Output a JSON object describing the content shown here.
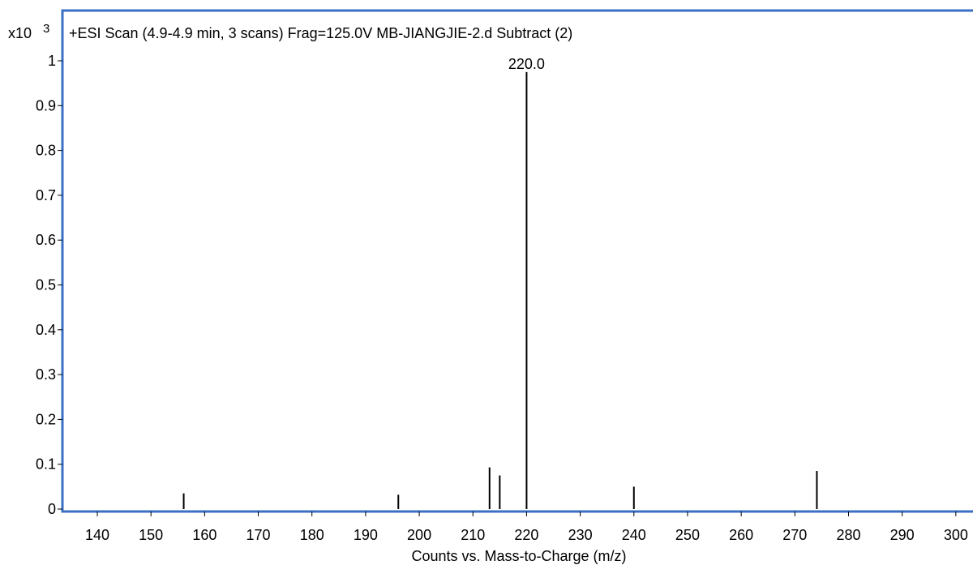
{
  "chart_data": {
    "type": "bar",
    "title": "+ESI Scan (4.9-4.9 min, 3 scans) Frag=125.0V MB-JIANGJIE-2.d  Subtract (2)",
    "xlabel": "Counts vs. Mass-to-Charge (m/z)",
    "y_scale_base": "x10",
    "y_scale_exponent": "3",
    "xlim": [
      133.5,
      303.5
    ],
    "ylim": [
      0,
      1.03
    ],
    "x_ticks": [
      "140",
      "150",
      "160",
      "170",
      "180",
      "190",
      "200",
      "210",
      "220",
      "230",
      "240",
      "250",
      "260",
      "270",
      "280",
      "290",
      "300"
    ],
    "y_ticks": [
      "0",
      "0.1",
      "0.2",
      "0.3",
      "0.4",
      "0.5",
      "0.6",
      "0.7",
      "0.8",
      "0.9",
      "1"
    ],
    "peaks": [
      {
        "mz": 156.1,
        "value": 0.035
      },
      {
        "mz": 196.1,
        "value": 0.032
      },
      {
        "mz": 213.1,
        "value": 0.093
      },
      {
        "mz": 215.0,
        "value": 0.075
      },
      {
        "mz": 220.0,
        "value": 0.975,
        "label": "220.0"
      },
      {
        "mz": 240.0,
        "value": 0.05
      },
      {
        "mz": 274.1,
        "value": 0.085
      }
    ],
    "colors": {
      "frame": "#3a6fc4",
      "bars": "#000000"
    }
  }
}
